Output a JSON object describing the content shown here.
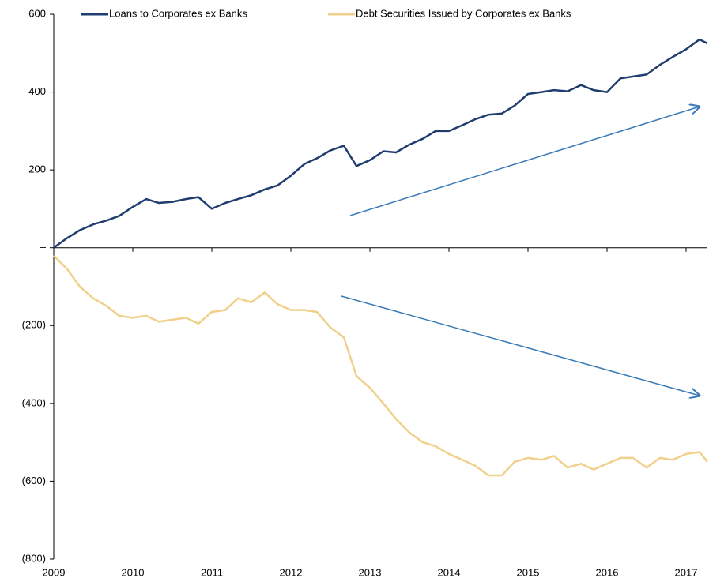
{
  "chart_data": {
    "type": "line",
    "x": [
      2009,
      2009.17,
      2009.33,
      2009.5,
      2009.67,
      2009.83,
      2010,
      2010.17,
      2010.33,
      2010.5,
      2010.67,
      2010.83,
      2011,
      2011.17,
      2011.33,
      2011.5,
      2011.67,
      2011.83,
      2012,
      2012.17,
      2012.33,
      2012.5,
      2012.67,
      2012.83,
      2013,
      2013.17,
      2013.33,
      2013.5,
      2013.67,
      2013.83,
      2014,
      2014.17,
      2014.33,
      2014.5,
      2014.67,
      2014.83,
      2015,
      2015.17,
      2015.33,
      2015.5,
      2015.67,
      2015.83,
      2016,
      2016.17,
      2016.33,
      2016.5,
      2016.67,
      2016.83,
      2017,
      2017.17,
      2017.27
    ],
    "series": [
      {
        "name": "Loans to Corporates ex Banks",
        "color": "#1f3d6e",
        "values": [
          0,
          25,
          45,
          60,
          70,
          82,
          105,
          125,
          115,
          118,
          125,
          130,
          100,
          115,
          125,
          135,
          150,
          160,
          185,
          215,
          230,
          250,
          262,
          210,
          225,
          248,
          245,
          265,
          280,
          300,
          300,
          315,
          330,
          342,
          345,
          365,
          395,
          400,
          405,
          402,
          418,
          405,
          400,
          435,
          440,
          445,
          470,
          490,
          510,
          535,
          525
        ]
      },
      {
        "name": "Debt Securities Issued by Corporates ex Banks",
        "color": "#f0d08a",
        "values": [
          -20,
          -55,
          -100,
          -130,
          -150,
          -175,
          -180,
          -175,
          -190,
          -185,
          -180,
          -195,
          -165,
          -160,
          -130,
          -140,
          -115,
          -145,
          -160,
          -160,
          -165,
          -205,
          -230,
          -330,
          -360,
          -400,
          -440,
          -475,
          -500,
          -510,
          -530,
          -545,
          -560,
          -585,
          -585,
          -550,
          -540,
          -545,
          -535,
          -565,
          -555,
          -570,
          -555,
          -540,
          -540,
          -565,
          -540,
          -545,
          -530,
          -525,
          -550
        ]
      }
    ],
    "xlim": [
      2009,
      2017.27
    ],
    "xticks": [
      2009,
      2010,
      2011,
      2012,
      2013,
      2014,
      2015,
      2016,
      2017
    ],
    "ylim": [
      -800,
      600
    ],
    "yticks": [
      600,
      400,
      200,
      {
        "value": 0,
        "label": "–"
      },
      {
        "value": -200,
        "label": "(200)"
      },
      {
        "value": -400,
        "label": "(400)"
      },
      {
        "value": -600,
        "label": "(600)"
      },
      {
        "value": -800,
        "label": "(800)"
      }
    ],
    "legend": "top"
  }
}
